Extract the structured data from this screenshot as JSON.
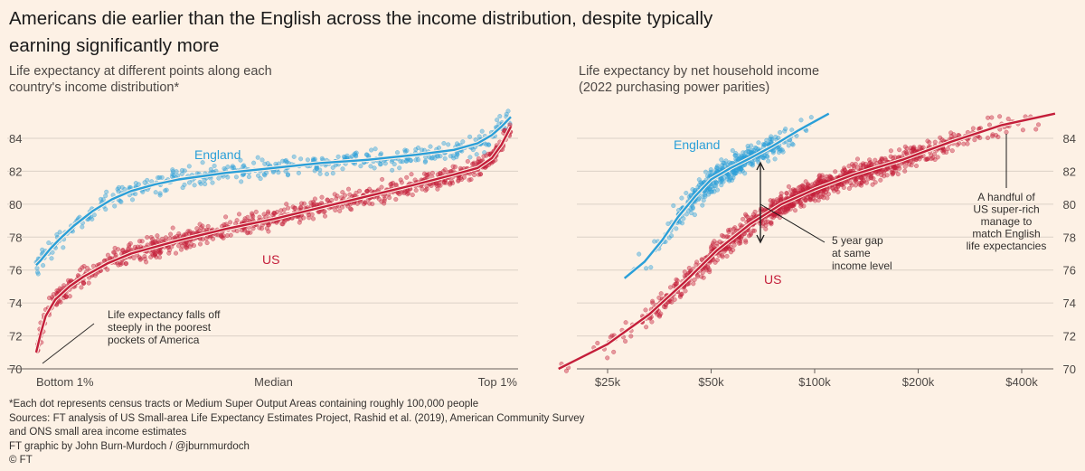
{
  "headline": "Americans die earlier than the English across the income distribution, despite typically earning significantly more",
  "footer": {
    "note": "*Each dot represents census tracts or Medium Super Output Areas containing roughly 100,000 people",
    "sources": "Sources: FT analysis of US Small-area Life Expectancy Estimates Project, Rashid et al. (2019), American Community Survey and ONS small area income estimates",
    "credit": "FT graphic by John Burn-Murdoch / @jburnmurdoch",
    "copyright": "© FT"
  },
  "colors": {
    "england": "#2a9fd8",
    "us": "#c41e3a",
    "background": "#fdf1e5",
    "grid": "#dcd1c6"
  },
  "chart_data": [
    {
      "type": "scatter",
      "title": "Life expectancy at different points along each country's income distribution*",
      "ylim": [
        70,
        85.5
      ],
      "yticks": [
        70,
        72,
        74,
        76,
        78,
        80,
        82,
        84
      ],
      "xlim": [
        0,
        100
      ],
      "x_tick_labels": [
        {
          "x": 1,
          "label": "Bottom 1%"
        },
        {
          "x": 50,
          "label": "Median"
        },
        {
          "x": 99,
          "label": "Top 1%"
        }
      ],
      "grid": true,
      "series": [
        {
          "name": "England",
          "trend": [
            [
              0,
              76.3
            ],
            [
              1,
              76.6
            ],
            [
              3,
              77.3
            ],
            [
              5,
              77.9
            ],
            [
              8,
              78.7
            ],
            [
              12,
              79.6
            ],
            [
              16,
              80.3
            ],
            [
              20,
              80.8
            ],
            [
              25,
              81.2
            ],
            [
              30,
              81.5
            ],
            [
              40,
              81.9
            ],
            [
              50,
              82.2
            ],
            [
              60,
              82.5
            ],
            [
              70,
              82.7
            ],
            [
              80,
              83.0
            ],
            [
              88,
              83.3
            ],
            [
              93,
              83.7
            ],
            [
              96,
              84.2
            ],
            [
              98,
              84.7
            ],
            [
              100,
              85.3
            ]
          ]
        },
        {
          "name": "US",
          "trend": [
            [
              0,
              71.0
            ],
            [
              1,
              72.2
            ],
            [
              2,
              73.2
            ],
            [
              4,
              74.2
            ],
            [
              7,
              75.0
            ],
            [
              10,
              75.6
            ],
            [
              15,
              76.4
            ],
            [
              20,
              77.0
            ],
            [
              30,
              77.8
            ],
            [
              40,
              78.5
            ],
            [
              50,
              79.1
            ],
            [
              60,
              79.8
            ],
            [
              70,
              80.5
            ],
            [
              80,
              81.2
            ],
            [
              88,
              81.8
            ],
            [
              93,
              82.2
            ],
            [
              96,
              82.8
            ],
            [
              98,
              83.6
            ],
            [
              100,
              84.7
            ]
          ]
        }
      ],
      "annotations": [
        {
          "text": "Life expectancy falls off steeply in the poorest pockets of America",
          "lines": [
            "Life expectancy falls off",
            "steeply in the poorest",
            "pockets of America"
          ]
        }
      ]
    },
    {
      "type": "scatter",
      "title": "Life expectancy by net household income (2022 purchasing power parities)",
      "ylim": [
        70,
        85.5
      ],
      "yticks": [
        70,
        72,
        74,
        76,
        78,
        80,
        82,
        84
      ],
      "xscale": "log",
      "xlim": [
        18000,
        600000
      ],
      "xticks": [
        {
          "value": 25000,
          "label": "$25k"
        },
        {
          "value": 50000,
          "label": "$50k"
        },
        {
          "value": 100000,
          "label": "$100k"
        },
        {
          "value": 200000,
          "label": "$200k"
        },
        {
          "value": 400000,
          "label": "$400k"
        }
      ],
      "grid": true,
      "series": [
        {
          "name": "England",
          "trend": [
            [
              28000,
              75.5
            ],
            [
              32000,
              76.5
            ],
            [
              36000,
              77.8
            ],
            [
              40000,
              79.2
            ],
            [
              45000,
              80.5
            ],
            [
              50000,
              81.5
            ],
            [
              57000,
              82.2
            ],
            [
              65000,
              82.8
            ],
            [
              75000,
              83.5
            ],
            [
              90000,
              84.5
            ],
            [
              110000,
              85.5
            ]
          ]
        },
        {
          "name": "US",
          "trend": [
            [
              18000,
              70.0
            ],
            [
              25000,
              71.5
            ],
            [
              33000,
              73.3
            ],
            [
              42000,
              75.3
            ],
            [
              52000,
              77.2
            ],
            [
              65000,
              78.8
            ],
            [
              80000,
              80.0
            ],
            [
              100000,
              80.9
            ],
            [
              130000,
              81.8
            ],
            [
              180000,
              82.7
            ],
            [
              250000,
              83.8
            ],
            [
              350000,
              84.8
            ],
            [
              500000,
              85.5
            ]
          ]
        }
      ],
      "annotations": [
        {
          "text": "5 year gap at same income level",
          "lines": [
            "5 year gap",
            "at same",
            "income level"
          ]
        },
        {
          "text": "A handful of US super-rich manage to match English life expectancies",
          "lines": [
            "A handful of",
            "US super-rich",
            "manage to",
            "match English",
            "life expectancies"
          ]
        }
      ]
    }
  ]
}
